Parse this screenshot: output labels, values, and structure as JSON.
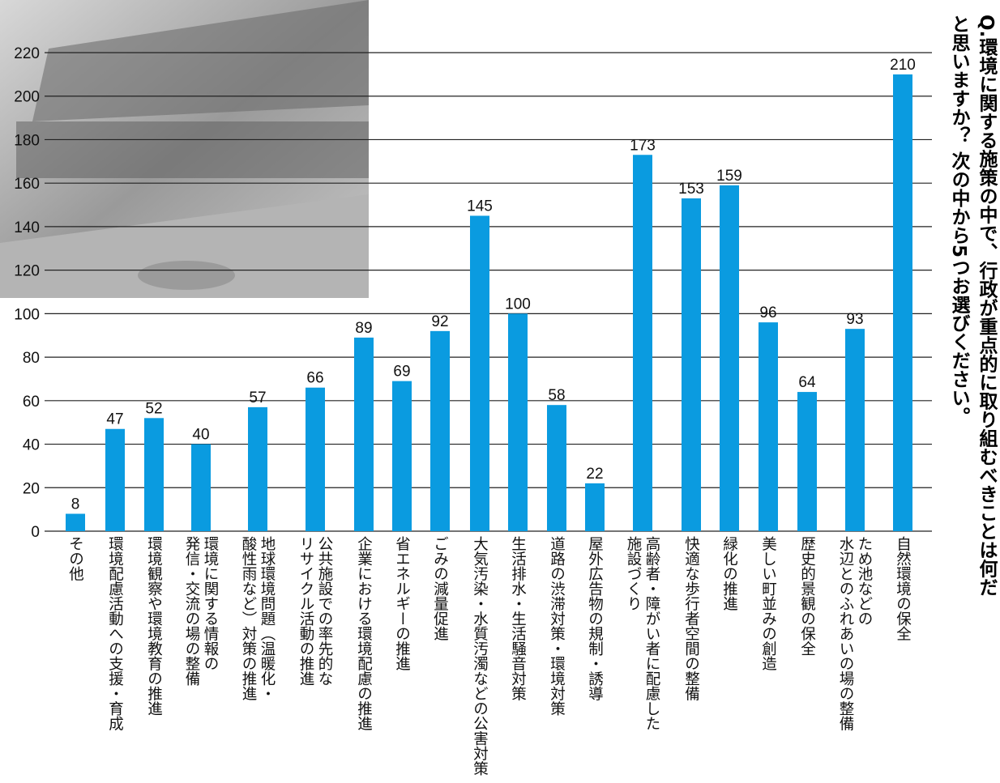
{
  "chart_data": {
    "type": "bar",
    "title": "Q.環境に関する施策の中で、行政が重点的に取り組むべきことは何だ\nと思いますか？ 次の中から5つお選びください。",
    "categories": [
      "その他",
      "環境配慮活動への支援・育成",
      "環境観察や環境教育の推進",
      "環境に関する情報の\n発信・交流の場の整備",
      "地球環境問題（温暖化・\n酸性雨など）対策の推進",
      "公共施設での率先的な\nリサイクル活動の推進",
      "企業における環境配慮の推進",
      "省エネルギーの推進",
      "ごみの減量促進",
      "大気汚染・水質汚濁などの公害対策",
      "生活排水・生活騒音対策",
      "道路の渋滞対策・環境対策",
      "屋外広告物の規制・誘導",
      "高齢者・障がい者に配慮した\n施設づくり",
      "快適な歩行者空間の整備",
      "緑化の推進",
      "美しい町並みの創造",
      "歴史的景観の保全",
      "ため池などの\n水辺とのふれあいの場の整備",
      "自然環境の保全"
    ],
    "values": [
      8,
      47,
      52,
      40,
      57,
      66,
      89,
      69,
      92,
      145,
      100,
      58,
      22,
      173,
      153,
      159,
      96,
      64,
      93,
      210
    ],
    "color": "#0a9be0",
    "ylim": [
      0,
      220
    ],
    "yticks": [
      0,
      20,
      40,
      60,
      80,
      100,
      120,
      140,
      160,
      180,
      200,
      220
    ],
    "grid": true
  }
}
